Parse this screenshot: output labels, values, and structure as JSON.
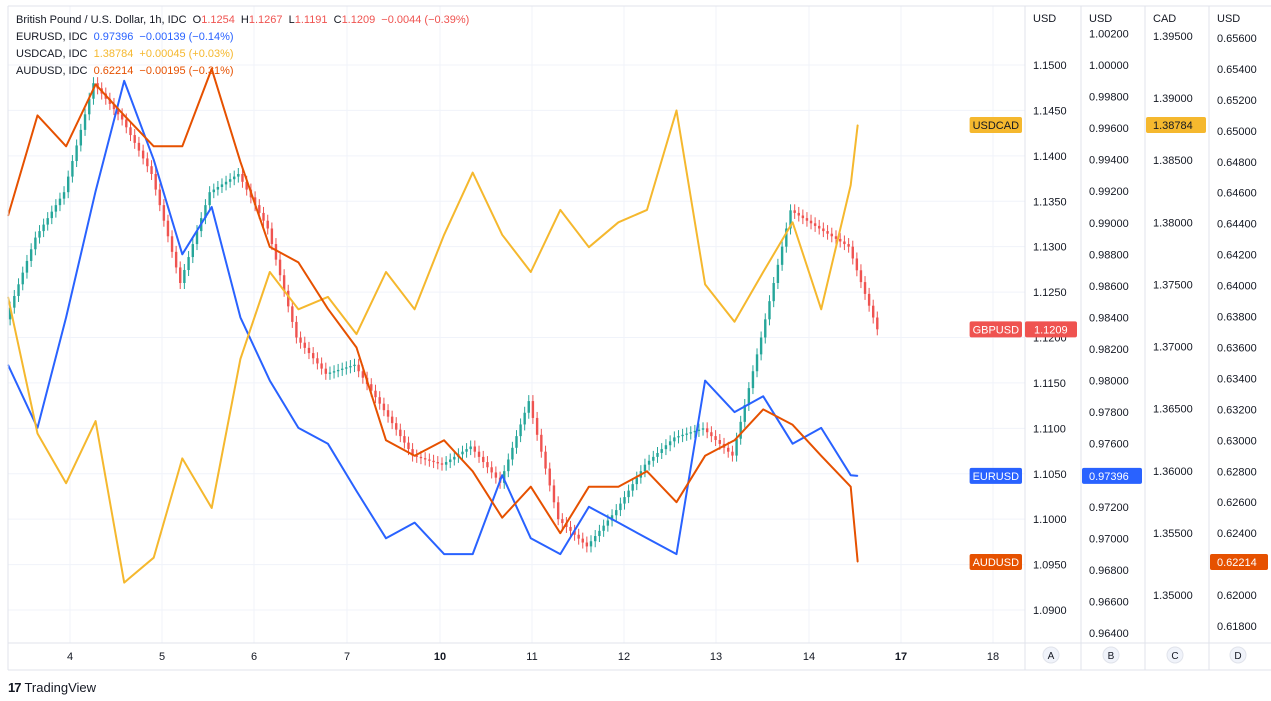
{
  "legend": {
    "main": {
      "name": "British Pound / U.S. Dollar, 1h, IDC",
      "o_label": "O",
      "o_value": "1.1254",
      "h_label": "H",
      "h_value": "1.1267",
      "l_label": "L",
      "l_value": "1.1191",
      "c_label": "C",
      "c_value": "1.1209",
      "change": "−0.0044 (−0.39%)",
      "color": "#ef5350"
    },
    "overlays": [
      {
        "name": "EURUSD, IDC",
        "value": "0.97396",
        "change": "−0.00139 (−0.14%)",
        "color": "#2962ff"
      },
      {
        "name": "USDCAD, IDC",
        "value": "1.38784",
        "change": "+0.00045 (+0.03%)",
        "color": "#f5b82e"
      },
      {
        "name": "AUDUSD, IDC",
        "value": "0.62214",
        "change": "−0.00195 (−0.31%)",
        "color": "#e65100"
      }
    ]
  },
  "footer": {
    "brand": "TradingView"
  },
  "chart_data": {
    "type": "line",
    "x_ticks": [
      "4",
      "5",
      "6",
      "7",
      "10",
      "11",
      "12",
      "13",
      "14",
      "17",
      "18"
    ],
    "axes": [
      {
        "id": "A",
        "title": "USD",
        "ticks": [
          "1.1500",
          "1.1450",
          "1.1400",
          "1.1350",
          "1.1300",
          "1.1250",
          "1.1200",
          "1.1150",
          "1.1100",
          "1.1050",
          "1.1000",
          "1.0950",
          "1.0900"
        ]
      },
      {
        "id": "B",
        "title": "USD",
        "ticks": [
          "1.00200",
          "1.00000",
          "0.99800",
          "0.99600",
          "0.99400",
          "0.99200",
          "0.99000",
          "0.98800",
          "0.98600",
          "0.98400",
          "0.98200",
          "0.98000",
          "0.97800",
          "0.97600",
          "0.97400",
          "0.97200",
          "0.97000",
          "0.96800",
          "0.96600",
          "0.96400"
        ]
      },
      {
        "id": "C",
        "title": "CAD",
        "ticks": [
          "1.39500",
          "1.39000",
          "1.38500",
          "1.38000",
          "1.37500",
          "1.37000",
          "1.36500",
          "1.36000",
          "1.35500",
          "1.35000"
        ]
      },
      {
        "id": "D",
        "title": "USD",
        "ticks": [
          "0.65600",
          "0.65400",
          "0.65200",
          "0.65000",
          "0.64800",
          "0.64600",
          "0.64400",
          "0.64200",
          "0.64000",
          "0.63800",
          "0.63600",
          "0.63400",
          "0.63200",
          "0.63000",
          "0.62800",
          "0.62600",
          "0.62400",
          "0.62200",
          "0.62000",
          "0.61800"
        ]
      }
    ],
    "series": [
      {
        "name": "GBPUSD",
        "axis": "A",
        "last": "1.1209",
        "color": "#ef5350",
        "style": "candles",
        "x": [
          0,
          3.4,
          6.7,
          10.1,
          13.4,
          16.8,
          20.1,
          23.5,
          26.8,
          30.2,
          33.5,
          36.9,
          40.2,
          43.6,
          46.9,
          50.3,
          53.6,
          57.0,
          60.3,
          63.7,
          67.0,
          70.4,
          73.7,
          77.1,
          80.4,
          83.8,
          87.1,
          90.5,
          93.8,
          97.2,
          100.5
        ],
        "close": [
          1.122,
          1.131,
          1.136,
          1.148,
          1.144,
          1.138,
          1.126,
          1.136,
          1.138,
          1.132,
          1.12,
          1.116,
          1.117,
          1.112,
          1.107,
          1.106,
          1.108,
          1.104,
          1.113,
          1.1,
          1.097,
          1.101,
          1.106,
          1.109,
          1.11,
          1.107,
          1.12,
          1.134,
          1.132,
          1.13,
          1.1209
        ]
      },
      {
        "name": "EURUSD",
        "axis": "B",
        "last": "0.97396",
        "color": "#2962ff",
        "x": [
          0,
          3.4,
          6.7,
          10.1,
          13.4,
          16.8,
          20.1,
          23.5,
          26.8,
          30.2,
          33.5,
          36.9,
          40.2,
          43.6,
          46.9,
          50.3,
          53.6,
          57.0,
          60.3,
          63.7,
          67.0,
          70.4,
          73.7,
          77.1,
          80.4,
          83.8,
          87.1,
          90.5,
          93.8,
          97.2,
          98.0
        ],
        "y": [
          0.981,
          0.977,
          0.984,
          0.992,
          0.999,
          0.994,
          0.988,
          0.991,
          0.984,
          0.98,
          0.977,
          0.976,
          0.973,
          0.97,
          0.971,
          0.969,
          0.969,
          0.974,
          0.97,
          0.969,
          0.972,
          0.971,
          0.97,
          0.969,
          0.98,
          0.978,
          0.979,
          0.976,
          0.977,
          0.974,
          0.97396
        ]
      },
      {
        "name": "USDCAD",
        "axis": "C",
        "last": "1.38784",
        "color": "#f5b82e",
        "x": [
          0,
          3.4,
          6.7,
          10.1,
          13.4,
          16.8,
          20.1,
          23.5,
          26.8,
          30.2,
          33.5,
          36.9,
          40.2,
          43.6,
          46.9,
          50.3,
          53.6,
          57.0,
          60.3,
          63.7,
          67.0,
          70.4,
          73.7,
          77.1,
          80.4,
          83.8,
          87.1,
          90.5,
          93.8,
          97.2,
          98.0
        ],
        "y": [
          1.374,
          1.363,
          1.359,
          1.364,
          1.351,
          1.353,
          1.361,
          1.357,
          1.369,
          1.376,
          1.373,
          1.374,
          1.371,
          1.376,
          1.373,
          1.379,
          1.384,
          1.379,
          1.376,
          1.381,
          1.378,
          1.38,
          1.381,
          1.389,
          1.375,
          1.372,
          1.376,
          1.38,
          1.373,
          1.383,
          1.38784
        ]
      },
      {
        "name": "AUDUSD",
        "axis": "D",
        "last": "0.62214",
        "color": "#e65100",
        "x": [
          0,
          3.4,
          6.7,
          10.1,
          13.4,
          16.8,
          20.1,
          23.5,
          26.8,
          30.2,
          33.5,
          36.9,
          40.2,
          43.6,
          46.9,
          50.3,
          53.6,
          57.0,
          60.3,
          63.7,
          67.0,
          70.4,
          73.7,
          77.1,
          80.4,
          83.8,
          87.1,
          90.5,
          93.8,
          97.2,
          98.0
        ],
        "y": [
          0.6445,
          0.651,
          0.649,
          0.653,
          0.651,
          0.649,
          0.649,
          0.654,
          0.648,
          0.6425,
          0.6415,
          0.6385,
          0.636,
          0.63,
          0.629,
          0.63,
          0.628,
          0.625,
          0.627,
          0.624,
          0.627,
          0.627,
          0.628,
          0.626,
          0.629,
          0.63,
          0.632,
          0.631,
          0.629,
          0.627,
          0.62214
        ]
      }
    ]
  }
}
